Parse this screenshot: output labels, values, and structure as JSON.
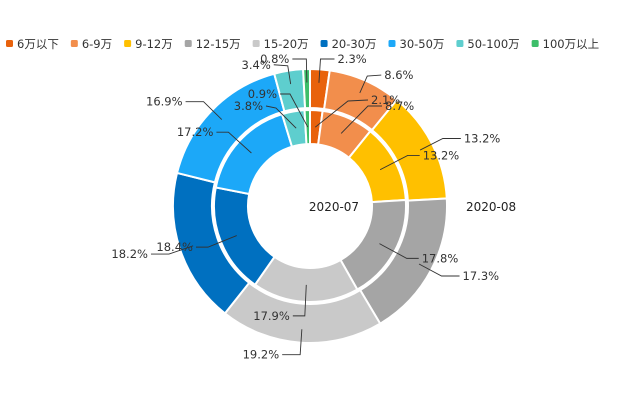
{
  "chart_data": {
    "type": "pie",
    "subtype": "nested-donut",
    "title": "",
    "categories": [
      "6万以下",
      "6-9万",
      "9-12万",
      "12-15万",
      "15-20万",
      "20-30万",
      "30-50万",
      "50-100万",
      "100万以上"
    ],
    "colors": [
      "#E8620C",
      "#F28E4C",
      "#FFC000",
      "#A5A5A5",
      "#C9C9C9",
      "#0070C0",
      "#1CA8F8",
      "#5ECECE",
      "#3DBE6A"
    ],
    "legend_position": "top",
    "series": [
      {
        "name": "2020-07",
        "ring": "inner",
        "values": [
          2.1,
          8.7,
          13.2,
          17.8,
          17.9,
          18.4,
          17.2,
          3.8,
          0.9
        ],
        "labels": [
          "2.1%",
          "8.7%",
          "13.2%",
          "17.8%",
          "17.9%",
          "18.4%",
          "17.2%",
          "3.8%",
          "0.9%"
        ]
      },
      {
        "name": "2020-08",
        "ring": "outer",
        "values": [
          2.3,
          8.6,
          13.2,
          17.3,
          19.2,
          18.2,
          16.9,
          3.4,
          0.8
        ],
        "labels": [
          "2.3%",
          "8.6%",
          "13.2%",
          "17.3%",
          "19.2%",
          "18.2%",
          "16.9%",
          "3.4%",
          "0.8%"
        ]
      }
    ]
  }
}
